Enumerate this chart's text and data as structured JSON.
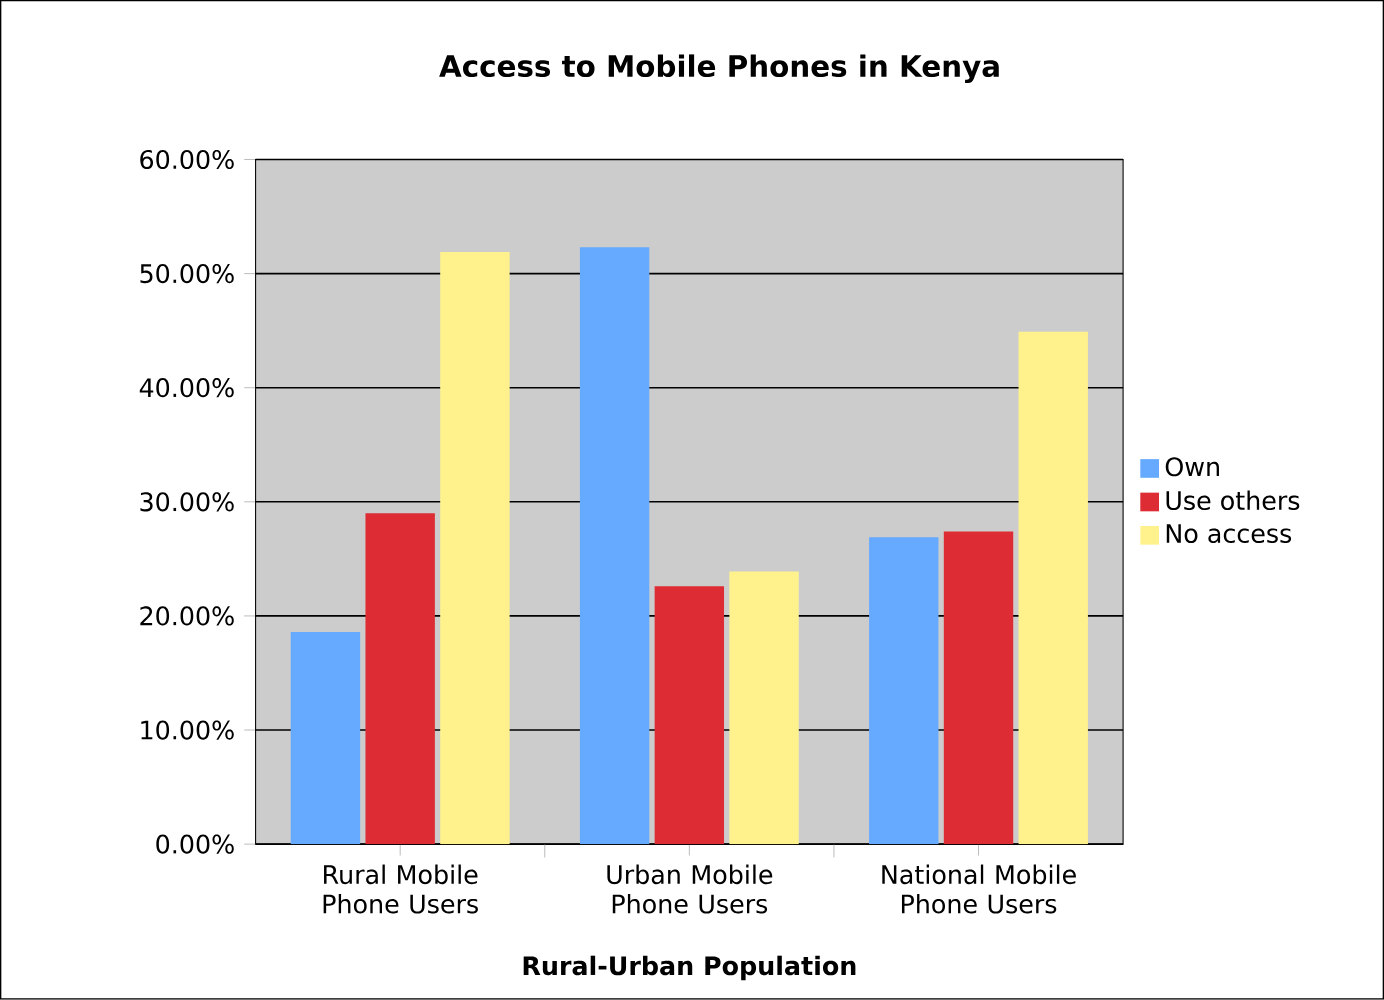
{
  "chart_data": {
    "type": "bar",
    "title": "Access to Mobile Phones in Kenya",
    "xlabel": "Rural-Urban Population",
    "categories": [
      "Rural Mobile Phone Users",
      "Urban Mobile Phone Users",
      "National Mobile Phone Users"
    ],
    "series": [
      {
        "name": "Own",
        "color": "#66aaff",
        "values": [
          18.6,
          52.3,
          26.9
        ]
      },
      {
        "name": "Use others",
        "color": "#dd2c33",
        "values": [
          29.0,
          22.6,
          27.4
        ]
      },
      {
        "name": "No access",
        "color": "#fff28c",
        "values": [
          51.9,
          23.9,
          44.9
        ]
      }
    ],
    "ylim": [
      0,
      60
    ],
    "yticks": [
      {
        "value": 0,
        "label": "0.00%"
      },
      {
        "value": 10,
        "label": "10.00%"
      },
      {
        "value": 20,
        "label": "20.00%"
      },
      {
        "value": 30,
        "label": "30.00%"
      },
      {
        "value": 40,
        "label": "40.00%"
      },
      {
        "value": 50,
        "label": "50.00%"
      },
      {
        "value": 60,
        "label": "60.00%"
      }
    ],
    "grid": "y",
    "legend": "right"
  }
}
